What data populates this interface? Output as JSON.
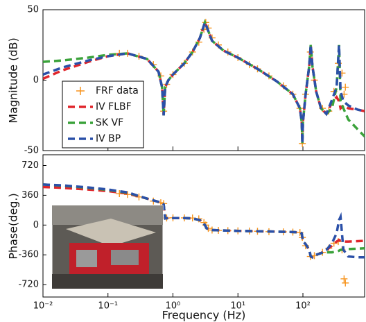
{
  "chart_data": [
    {
      "type": "line",
      "ylabel": "Magnitude (dB)",
      "xscale": "log",
      "xlim": [
        0.01,
        890
      ],
      "ylim": [
        -50,
        50
      ],
      "yticks": [
        -50,
        0,
        50
      ],
      "legend": "center left",
      "series": [
        {
          "name": "FRF data",
          "color": "#f7941d",
          "marker": "+",
          "linestyle": "none",
          "x": [
            0.15,
            0.2,
            0.3,
            0.5,
            0.65,
            0.72,
            0.8,
            1,
            1.5,
            2,
            2.5,
            3,
            3.2,
            3.5,
            4,
            5,
            7,
            10,
            15,
            20,
            30,
            50,
            70,
            90,
            98,
            110,
            130,
            150,
            200,
            250,
            300,
            350,
            400,
            430,
            450
          ],
          "values": [
            19,
            19,
            17,
            11,
            3,
            -22,
            -3,
            4,
            12,
            20,
            27,
            36,
            41,
            37,
            30,
            25,
            20,
            16,
            11,
            8,
            3,
            -4,
            -10,
            -20,
            -45,
            -10,
            20,
            0,
            -20,
            -22,
            -8,
            12,
            5,
            -10,
            -5
          ]
        },
        {
          "name": "IV FLBF",
          "color": "#e0262b",
          "linestyle": "dashed",
          "x": [
            0.01,
            0.02,
            0.05,
            0.1,
            0.2,
            0.4,
            0.6,
            0.68,
            0.72,
            0.76,
            0.85,
            1,
            1.5,
            2,
            2.6,
            3.1,
            3.3,
            4,
            6,
            10,
            20,
            40,
            70,
            90,
            96,
            98,
            100,
            110,
            125,
            132,
            140,
            160,
            190,
            230,
            280,
            330,
            360,
            380,
            420,
            500,
            700,
            890
          ],
          "values": [
            1,
            7,
            13,
            17,
            19,
            15,
            6,
            -5,
            -25,
            -5,
            0,
            4,
            12,
            20,
            30,
            41,
            38,
            28,
            21,
            16,
            8,
            -1,
            -10,
            -20,
            -30,
            -45,
            -30,
            -10,
            10,
            25,
            10,
            -8,
            -20,
            -24,
            -16,
            -12,
            -15,
            -20,
            -18,
            -20,
            -21,
            -22
          ]
        },
        {
          "name": "SK VF",
          "color": "#3aa23a",
          "linestyle": "dashed",
          "x": [
            0.01,
            0.02,
            0.05,
            0.1,
            0.2,
            0.4,
            0.6,
            0.68,
            0.72,
            0.76,
            0.85,
            1,
            1.5,
            2,
            2.6,
            3.1,
            3.3,
            4,
            6,
            10,
            20,
            40,
            70,
            90,
            96,
            98,
            100,
            110,
            125,
            132,
            140,
            160,
            190,
            230,
            280,
            330,
            360,
            380,
            420,
            500,
            700,
            890
          ],
          "values": [
            13,
            14,
            16,
            18,
            19,
            15,
            6,
            -5,
            -25,
            -5,
            0,
            4,
            12,
            20,
            30,
            41,
            38,
            28,
            21,
            16,
            8,
            -1,
            -10,
            -20,
            -30,
            -45,
            -30,
            -10,
            10,
            25,
            10,
            -8,
            -20,
            -24,
            -20,
            -5,
            25,
            -15,
            -20,
            -28,
            -35,
            -40
          ]
        },
        {
          "name": "IV BP",
          "color": "#2b50a8",
          "linestyle": "dashed",
          "x": [
            0.01,
            0.02,
            0.05,
            0.1,
            0.2,
            0.4,
            0.6,
            0.68,
            0.72,
            0.76,
            0.85,
            1,
            1.5,
            2,
            2.6,
            3.1,
            3.3,
            4,
            6,
            10,
            20,
            40,
            70,
            90,
            96,
            98,
            100,
            110,
            125,
            132,
            140,
            160,
            190,
            230,
            280,
            330,
            360,
            380,
            420,
            500,
            700,
            890
          ],
          "values": [
            4,
            9,
            14,
            17,
            19,
            15,
            6,
            -5,
            -25,
            -5,
            0,
            4,
            12,
            20,
            30,
            41,
            38,
            28,
            21,
            16,
            8,
            -1,
            -10,
            -20,
            -30,
            -45,
            -30,
            -10,
            10,
            25,
            10,
            -8,
            -20,
            -24,
            -14,
            -5,
            25,
            -8,
            -15,
            -18,
            -21,
            -22
          ]
        }
      ]
    },
    {
      "type": "line",
      "ylabel": "Phase(deg.)",
      "xlabel": "Frequency (Hz)",
      "xscale": "log",
      "xlim": [
        0.01,
        890
      ],
      "ylim": [
        -870,
        850
      ],
      "yticks": [
        720,
        360,
        0,
        -360,
        -720
      ],
      "xticks": [
        {
          "value": 0.01,
          "label": "10⁻²"
        },
        {
          "value": 0.1,
          "label": "10⁻¹"
        },
        {
          "value": 1,
          "label": "10⁰"
        },
        {
          "value": 10,
          "label": "10¹"
        },
        {
          "value": 100,
          "label": "10²"
        }
      ],
      "series": [
        {
          "name": "FRF data",
          "color": "#f7941d",
          "marker": "+",
          "linestyle": "none",
          "x": [
            0.15,
            0.2,
            0.3,
            0.5,
            0.65,
            0.72,
            0.8,
            1,
            1.5,
            2,
            2.5,
            3,
            3.2,
            3.5,
            4,
            5,
            7,
            10,
            15,
            20,
            30,
            50,
            70,
            90,
            98,
            110,
            130,
            150,
            200,
            250,
            300,
            350,
            400,
            430,
            450
          ],
          "values": [
            380,
            370,
            340,
            290,
            270,
            260,
            85,
            88,
            87,
            85,
            75,
            30,
            0,
            -40,
            -60,
            -65,
            -68,
            -70,
            -72,
            -75,
            -80,
            -82,
            -85,
            -90,
            -150,
            -250,
            -380,
            -370,
            -330,
            -280,
            -220,
            -200,
            -300,
            -650,
            -700
          ]
        },
        {
          "name": "IV FLBF",
          "color": "#e0262b",
          "linestyle": "dashed",
          "x": [
            0.01,
            0.02,
            0.05,
            0.1,
            0.2,
            0.4,
            0.6,
            0.68,
            0.72,
            0.76,
            0.85,
            1,
            1.5,
            2,
            2.6,
            3.1,
            3.3,
            4,
            6,
            10,
            20,
            40,
            70,
            90,
            96,
            98,
            100,
            110,
            125,
            132,
            140,
            160,
            190,
            230,
            280,
            330,
            360,
            380,
            420,
            500,
            700,
            890
          ],
          "values": [
            460,
            450,
            430,
            410,
            380,
            320,
            280,
            265,
            250,
            80,
            85,
            85,
            85,
            80,
            60,
            0,
            -40,
            -60,
            -65,
            -70,
            -75,
            -80,
            -85,
            -90,
            -100,
            -150,
            -200,
            -230,
            -300,
            -380,
            -390,
            -360,
            -340,
            -300,
            -250,
            -200,
            -180,
            -190,
            -200,
            -200,
            -195,
            -190
          ]
        },
        {
          "name": "SK VF",
          "color": "#3aa23a",
          "linestyle": "dashed",
          "x": [
            0.01,
            0.02,
            0.05,
            0.1,
            0.2,
            0.4,
            0.6,
            0.68,
            0.72,
            0.76,
            0.85,
            1,
            1.5,
            2,
            2.6,
            3.1,
            3.3,
            4,
            6,
            10,
            20,
            40,
            70,
            90,
            96,
            98,
            100,
            110,
            125,
            132,
            140,
            160,
            190,
            230,
            280,
            330,
            360,
            380,
            420,
            500,
            700,
            890
          ],
          "values": [
            490,
            475,
            450,
            425,
            390,
            320,
            280,
            265,
            250,
            80,
            85,
            85,
            85,
            80,
            60,
            0,
            -40,
            -60,
            -65,
            -70,
            -75,
            -80,
            -85,
            -90,
            -100,
            -150,
            -200,
            -230,
            -300,
            -380,
            -390,
            -360,
            -340,
            -330,
            -330,
            -320,
            -310,
            -300,
            -295,
            -290,
            -285,
            -280
          ]
        },
        {
          "name": "IV BP",
          "color": "#2b50a8",
          "linestyle": "dashed",
          "x": [
            0.01,
            0.02,
            0.05,
            0.1,
            0.2,
            0.4,
            0.6,
            0.68,
            0.72,
            0.76,
            0.85,
            1,
            1.5,
            2,
            2.6,
            3.1,
            3.3,
            4,
            6,
            10,
            20,
            40,
            70,
            90,
            96,
            98,
            100,
            110,
            125,
            132,
            140,
            160,
            190,
            230,
            280,
            330,
            360,
            380,
            420,
            500,
            700,
            890
          ],
          "values": [
            490,
            480,
            455,
            430,
            395,
            320,
            280,
            265,
            250,
            80,
            85,
            85,
            85,
            80,
            60,
            0,
            -40,
            -60,
            -65,
            -70,
            -75,
            -80,
            -85,
            -90,
            -100,
            -150,
            -200,
            -230,
            -300,
            -380,
            -390,
            -360,
            -340,
            -300,
            -220,
            -100,
            60,
            100,
            -300,
            -380,
            -390,
            -390
          ]
        }
      ]
    }
  ]
}
